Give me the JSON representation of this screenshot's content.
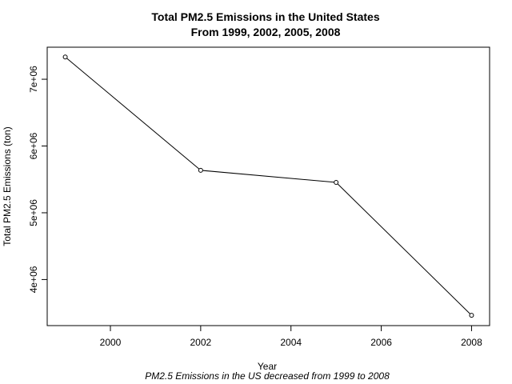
{
  "chart_data": {
    "type": "line",
    "title_line1": "Total PM2.5 Emissions in the United States",
    "title_line2": "From 1999, 2002, 2005, 2008",
    "xlabel": "Year",
    "ylabel": "Total PM2.5 Emissions (ton)",
    "subtitle": "PM2.5 Emissions in the US decreased from 1999 to 2008",
    "x": [
      1999,
      2002,
      2005,
      2008
    ],
    "y": [
      7332967,
      5635780,
      5454703,
      3464206
    ],
    "xlim": [
      1998.6,
      2008.4
    ],
    "ylim": [
      3310000,
      7480000
    ],
    "x_ticks": [
      2000,
      2002,
      2004,
      2006,
      2008
    ],
    "x_tick_labels": [
      "2000",
      "2002",
      "2004",
      "2006",
      "2008"
    ],
    "y_ticks": [
      4000000,
      5000000,
      6000000,
      7000000
    ],
    "y_tick_labels": [
      "4e+06",
      "5e+06",
      "6e+06",
      "7e+06"
    ],
    "grid": false,
    "marker": "open-circle",
    "line_color": "#000000"
  }
}
